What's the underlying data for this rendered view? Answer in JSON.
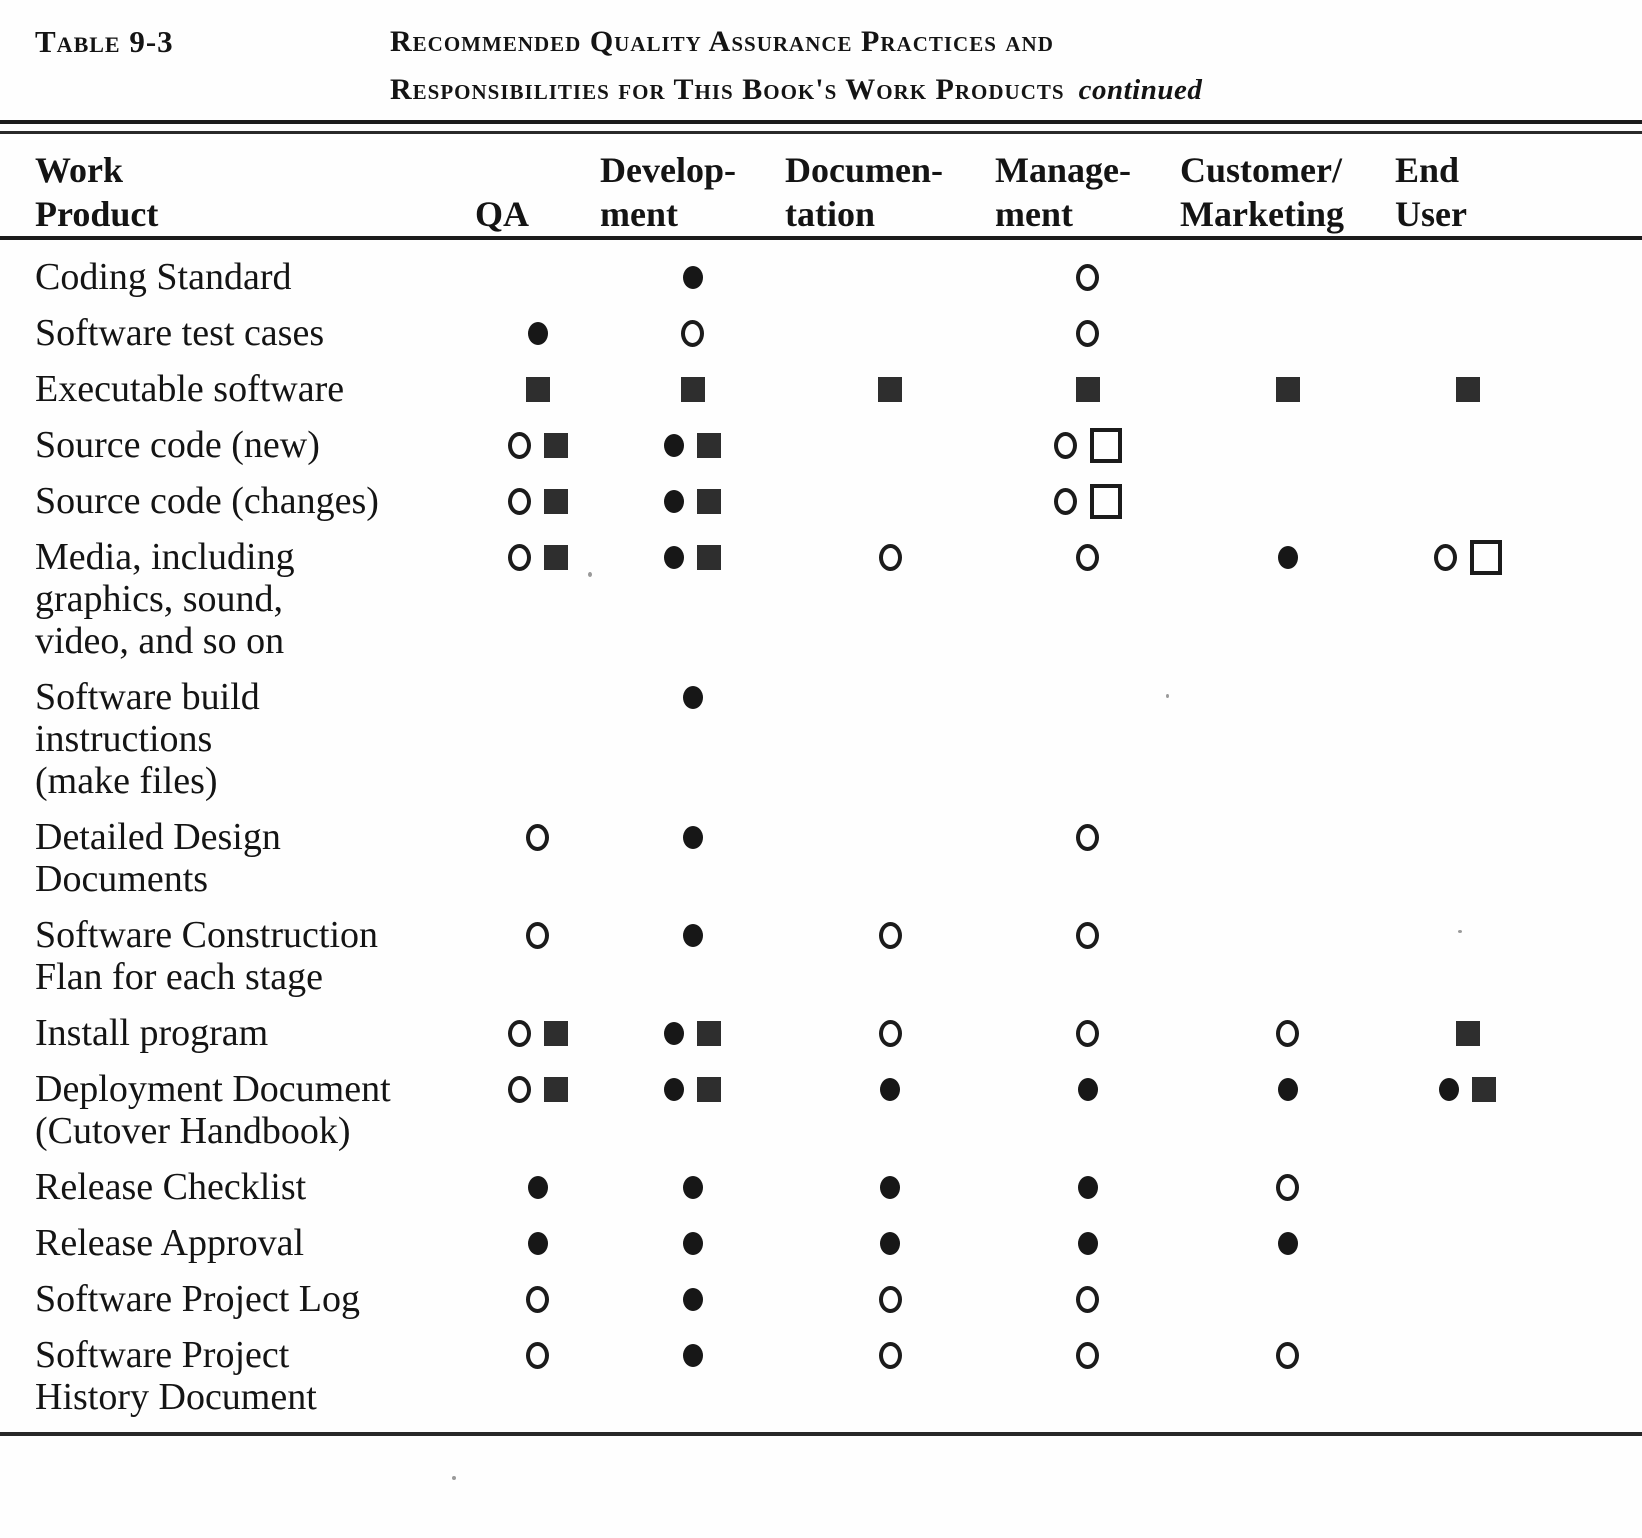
{
  "page": {
    "table_label": "Table 9-3",
    "title_line1": "Recommended Quality Assurance Practices and",
    "title_line2": "Responsibilities for This Book's Work Products",
    "continued_marker": "continued"
  },
  "symbols": {
    "circle-filled": "●",
    "circle-open": "○",
    "square-filled": "■",
    "square-open": "□"
  },
  "table": {
    "columns": [
      {
        "id": "work_product",
        "lines": [
          "Work",
          "Product"
        ]
      },
      {
        "id": "qa",
        "lines": [
          "",
          "QA"
        ]
      },
      {
        "id": "development",
        "lines": [
          "Develop-",
          "ment"
        ]
      },
      {
        "id": "documentation",
        "lines": [
          "Documen-",
          "tation"
        ]
      },
      {
        "id": "management",
        "lines": [
          "Manage-",
          "ment"
        ]
      },
      {
        "id": "customer_marketing",
        "lines": [
          "Customer/",
          "Marketing"
        ]
      },
      {
        "id": "end_user",
        "lines": [
          "End",
          "User"
        ]
      }
    ],
    "rows": [
      {
        "name": "Coding Standard",
        "lines": [
          "Coding Standard"
        ],
        "cells": [
          [],
          [
            "circle-filled"
          ],
          [],
          [
            "circle-open"
          ],
          [],
          []
        ]
      },
      {
        "name": "Software test cases",
        "lines": [
          "Software test cases"
        ],
        "cells": [
          [
            "circle-filled"
          ],
          [
            "circle-open"
          ],
          [],
          [
            "circle-open"
          ],
          [],
          []
        ]
      },
      {
        "name": "Executable software",
        "lines": [
          "Executable software"
        ],
        "cells": [
          [
            "square-filled"
          ],
          [
            "square-filled"
          ],
          [
            "square-filled"
          ],
          [
            "square-filled"
          ],
          [
            "square-filled"
          ],
          [
            "square-filled"
          ]
        ]
      },
      {
        "name": "Source code (new)",
        "lines": [
          "Source code (new)"
        ],
        "cells": [
          [
            "circle-open",
            "square-filled"
          ],
          [
            "circle-filled",
            "square-filled"
          ],
          [],
          [
            "circle-open",
            "square-open"
          ],
          [],
          []
        ]
      },
      {
        "name": "Source code (changes)",
        "lines": [
          "Source code (changes)"
        ],
        "cells": [
          [
            "circle-open",
            "square-filled"
          ],
          [
            "circle-filled",
            "square-filled"
          ],
          [],
          [
            "circle-open",
            "square-open"
          ],
          [],
          []
        ]
      },
      {
        "name": "Media, including graphics, sound, video, and so on",
        "lines": [
          "Media, including",
          "graphics, sound,",
          "video, and so on"
        ],
        "cells": [
          [
            "circle-open",
            "square-filled"
          ],
          [
            "circle-filled",
            "square-filled"
          ],
          [
            "circle-open"
          ],
          [
            "circle-open"
          ],
          [
            "circle-filled"
          ],
          [
            "circle-open",
            "square-open"
          ]
        ]
      },
      {
        "name": "Software build instructions (make files)",
        "lines": [
          "Software build",
          "instructions",
          "(make files)"
        ],
        "cells": [
          [],
          [
            "circle-filled"
          ],
          [],
          [],
          [],
          []
        ]
      },
      {
        "name": "Detailed Design Documents",
        "lines": [
          "Detailed Design",
          "Documents"
        ],
        "cells": [
          [
            "circle-open"
          ],
          [
            "circle-filled"
          ],
          [],
          [
            "circle-open"
          ],
          [],
          []
        ]
      },
      {
        "name": "Software Construction Flan for each stage",
        "lines": [
          "Software Construction",
          "Flan for each stage"
        ],
        "cells": [
          [
            "circle-open"
          ],
          [
            "circle-filled"
          ],
          [
            "circle-open"
          ],
          [
            "circle-open"
          ],
          [],
          []
        ]
      },
      {
        "name": "Install program",
        "lines": [
          "Install program"
        ],
        "cells": [
          [
            "circle-open",
            "square-filled"
          ],
          [
            "circle-filled",
            "square-filled"
          ],
          [
            "circle-open"
          ],
          [
            "circle-open"
          ],
          [
            "circle-open"
          ],
          [
            "square-filled"
          ]
        ]
      },
      {
        "name": "Deployment Document (Cutover Handbook)",
        "lines": [
          "Deployment Document",
          "(Cutover Handbook)"
        ],
        "cells": [
          [
            "circle-open",
            "square-filled"
          ],
          [
            "circle-filled",
            "square-filled"
          ],
          [
            "circle-filled"
          ],
          [
            "circle-filled"
          ],
          [
            "circle-filled"
          ],
          [
            "circle-filled",
            "square-filled"
          ]
        ]
      },
      {
        "name": "Release Checklist",
        "lines": [
          "Release Checklist"
        ],
        "cells": [
          [
            "circle-filled"
          ],
          [
            "circle-filled"
          ],
          [
            "circle-filled"
          ],
          [
            "circle-filled"
          ],
          [
            "circle-open"
          ],
          []
        ]
      },
      {
        "name": "Release Approval",
        "lines": [
          "Release Approval"
        ],
        "cells": [
          [
            "circle-filled"
          ],
          [
            "circle-filled"
          ],
          [
            "circle-filled"
          ],
          [
            "circle-filled"
          ],
          [
            "circle-filled"
          ],
          []
        ]
      },
      {
        "name": "Software Project Log",
        "lines": [
          "Software Project Log"
        ],
        "cells": [
          [
            "circle-open"
          ],
          [
            "circle-filled"
          ],
          [
            "circle-open"
          ],
          [
            "circle-open"
          ],
          [],
          []
        ]
      },
      {
        "name": "Software Project History Document",
        "lines": [
          "Software Project",
          "History Document"
        ],
        "cells": [
          [
            "circle-open"
          ],
          [
            "circle-filled"
          ],
          [
            "circle-open"
          ],
          [
            "circle-open"
          ],
          [
            "circle-open"
          ],
          []
        ]
      }
    ]
  }
}
